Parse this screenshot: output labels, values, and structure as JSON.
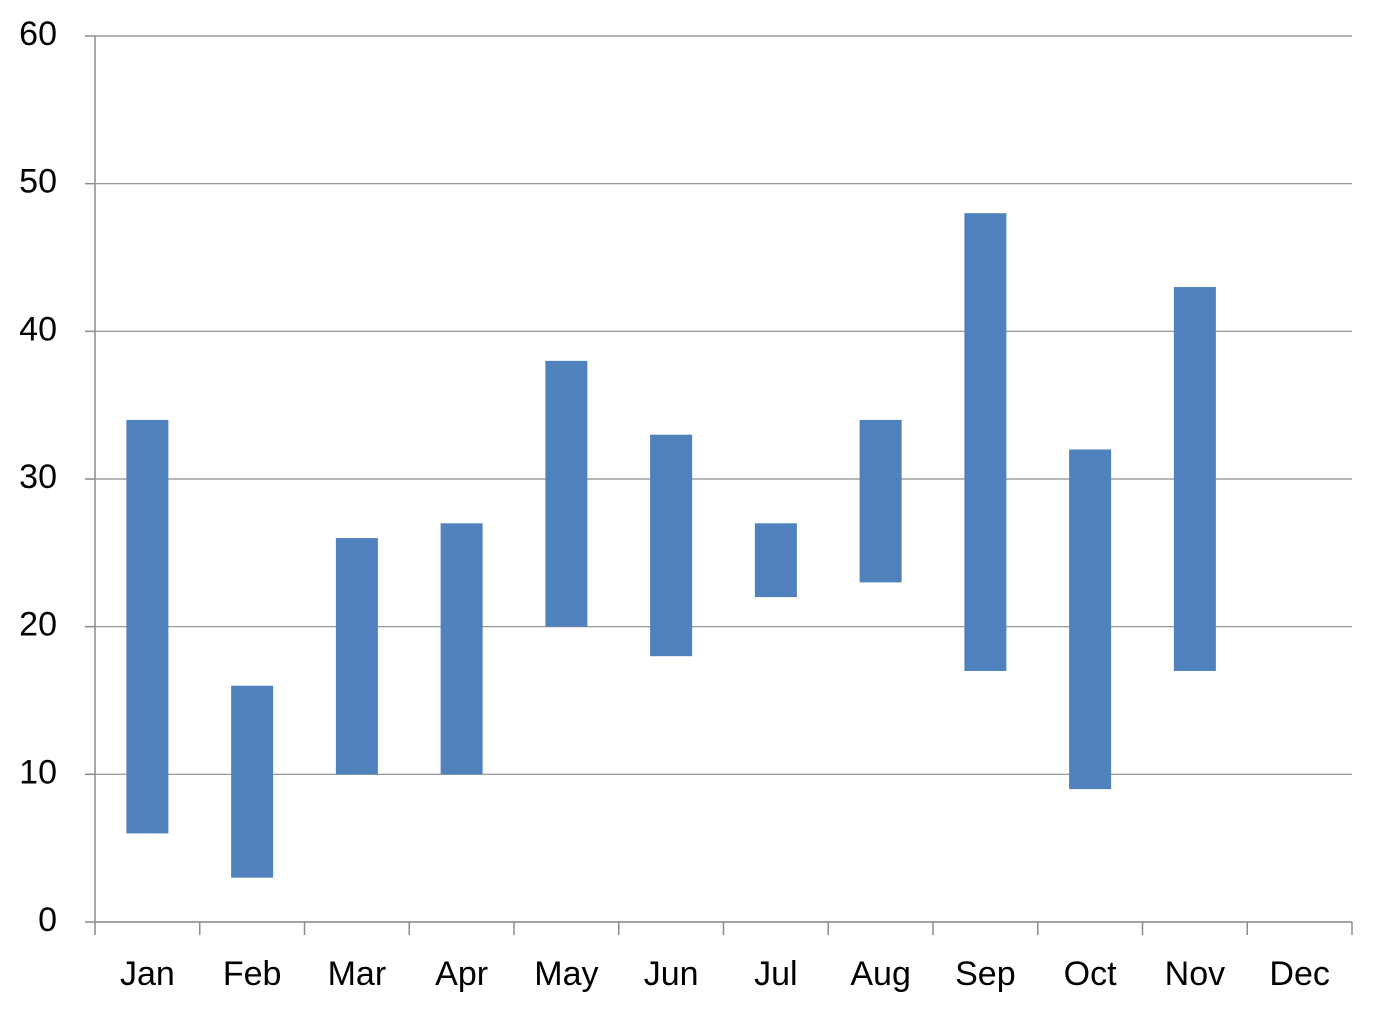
{
  "chart_data": {
    "type": "floating-bar",
    "categories": [
      "Jan",
      "Feb",
      "Mar",
      "Apr",
      "May",
      "Jun",
      "Jul",
      "Aug",
      "Sep",
      "Oct",
      "Nov",
      "Dec"
    ],
    "low": [
      6,
      3,
      10,
      10,
      20,
      18,
      22,
      23,
      17,
      9,
      17,
      null
    ],
    "high": [
      34,
      16,
      26,
      27,
      38,
      33,
      27,
      34,
      48,
      32,
      43,
      null
    ],
    "color": "#4f81bd",
    "ylim": [
      0,
      60
    ],
    "yticks": [
      0,
      10,
      20,
      30,
      40,
      50,
      60
    ],
    "grid": true
  }
}
